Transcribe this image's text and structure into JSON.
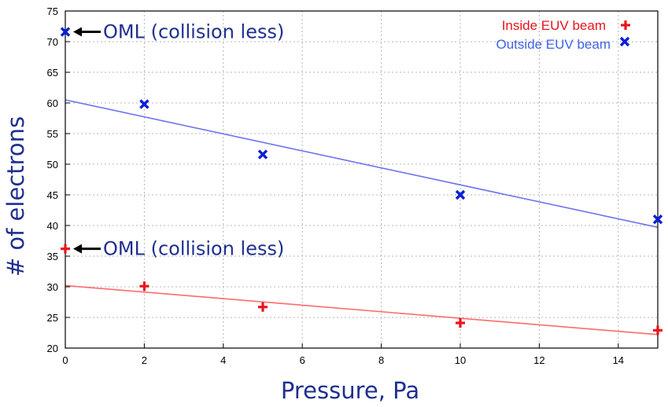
{
  "chart_data": {
    "type": "scatter",
    "title": "",
    "xlabel": "Pressure, Pa",
    "ylabel": "# of electrons",
    "xlim": [
      0,
      15
    ],
    "ylim": [
      20,
      75
    ],
    "xticks": [
      0,
      2,
      4,
      6,
      8,
      10,
      12,
      14
    ],
    "yticks": [
      20,
      25,
      30,
      35,
      40,
      45,
      50,
      55,
      60,
      65,
      70,
      75
    ],
    "grid": true,
    "legend_position": "top-right",
    "series": [
      {
        "name": "Inside EUV beam",
        "marker": "plus",
        "color": "#e8141c",
        "points": [
          [
            0,
            36.2
          ],
          [
            2,
            30.1
          ],
          [
            5,
            26.7
          ],
          [
            10,
            24.1
          ],
          [
            15,
            22.9
          ]
        ],
        "fit": {
          "color": "#ff6b6b",
          "x": [
            0,
            15
          ],
          "y": [
            30.2,
            22.2
          ]
        }
      },
      {
        "name": "Outside EUV beam",
        "marker": "cross",
        "color": "#0b1fd6",
        "points": [
          [
            0,
            71.6
          ],
          [
            2,
            59.8
          ],
          [
            5,
            51.6
          ],
          [
            10,
            45.0
          ],
          [
            15,
            41.0
          ]
        ],
        "fit": {
          "color": "#6d73ee",
          "x": [
            0,
            15
          ],
          "y": [
            60.5,
            39.7
          ]
        }
      }
    ],
    "annotations": [
      {
        "text": "OML (collision less)",
        "x": 0,
        "y": 71.6,
        "arrow": true
      },
      {
        "text": "OML (collision less)",
        "x": 0,
        "y": 36.2,
        "arrow": true
      }
    ]
  }
}
